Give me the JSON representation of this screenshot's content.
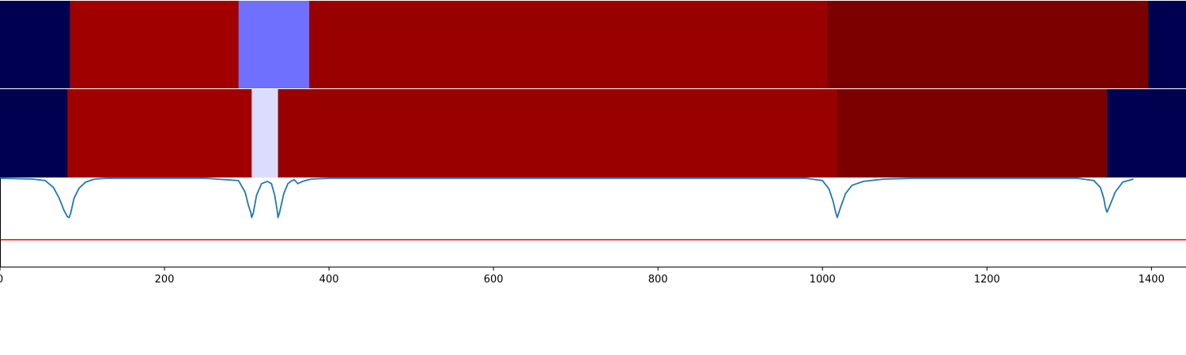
{
  "chart_data": [
    {
      "type": "heatmap",
      "panel": "top-band",
      "segments": [
        {
          "x0": 0,
          "x1": 85,
          "color": "#000050"
        },
        {
          "x0": 85,
          "x1": 290,
          "color": "#a00000"
        },
        {
          "x0": 290,
          "x1": 376,
          "color": "#7070ff"
        },
        {
          "x0": 376,
          "x1": 1006,
          "color": "#990000"
        },
        {
          "x0": 1006,
          "x1": 1396,
          "color": "#7d0000"
        },
        {
          "x0": 1396,
          "x1": 1442,
          "color": "#000050"
        }
      ]
    },
    {
      "type": "heatmap",
      "panel": "middle-band",
      "segments": [
        {
          "x0": 0,
          "x1": 82,
          "color": "#000050"
        },
        {
          "x0": 82,
          "x1": 306,
          "color": "#a00000"
        },
        {
          "x0": 306,
          "x1": 338,
          "color": "#dcdcff"
        },
        {
          "x0": 338,
          "x1": 1018,
          "color": "#990000"
        },
        {
          "x0": 1018,
          "x1": 1346,
          "color": "#7d0000"
        },
        {
          "x0": 1346,
          "x1": 1442,
          "color": "#000050"
        }
      ]
    },
    {
      "type": "line",
      "panel": "bottom-signal",
      "line_color": "#1f77b4",
      "threshold": {
        "value": 0.2,
        "color": "#ff0000"
      },
      "ylim": [
        -0.15,
        1.0
      ],
      "baseline": 1.0,
      "x": [
        0,
        40,
        55,
        65,
        72,
        78,
        82,
        84,
        86,
        90,
        96,
        104,
        115,
        130,
        250,
        290,
        298,
        302,
        305,
        306,
        308,
        312,
        318,
        325,
        330,
        334,
        337,
        338,
        340,
        345,
        350,
        355,
        358,
        362,
        368,
        378,
        400,
        980,
        1000,
        1008,
        1013,
        1016,
        1018,
        1022,
        1028,
        1036,
        1050,
        1075,
        1110,
        1310,
        1330,
        1338,
        1342,
        1344,
        1346,
        1350,
        1356,
        1365,
        1378
      ],
      "y": [
        1.0,
        0.99,
        0.97,
        0.88,
        0.74,
        0.58,
        0.5,
        0.49,
        0.55,
        0.74,
        0.87,
        0.95,
        0.99,
        1.0,
        1.0,
        0.97,
        0.82,
        0.65,
        0.55,
        0.49,
        0.55,
        0.78,
        0.93,
        0.96,
        0.93,
        0.78,
        0.58,
        0.49,
        0.56,
        0.8,
        0.93,
        0.97,
        0.98,
        0.93,
        0.96,
        0.99,
        1.0,
        1.0,
        0.97,
        0.86,
        0.7,
        0.56,
        0.49,
        0.62,
        0.8,
        0.91,
        0.96,
        0.99,
        1.0,
        1.0,
        0.97,
        0.88,
        0.74,
        0.62,
        0.56,
        0.66,
        0.82,
        0.95,
        0.99
      ],
      "xlim": [
        0,
        1442
      ],
      "xticks": [
        0,
        200,
        400,
        600,
        800,
        1000,
        1200,
        1400
      ],
      "xtick_labels": [
        "0",
        "200",
        "400",
        "600",
        "800",
        "1000",
        "1200",
        "1400"
      ]
    }
  ]
}
